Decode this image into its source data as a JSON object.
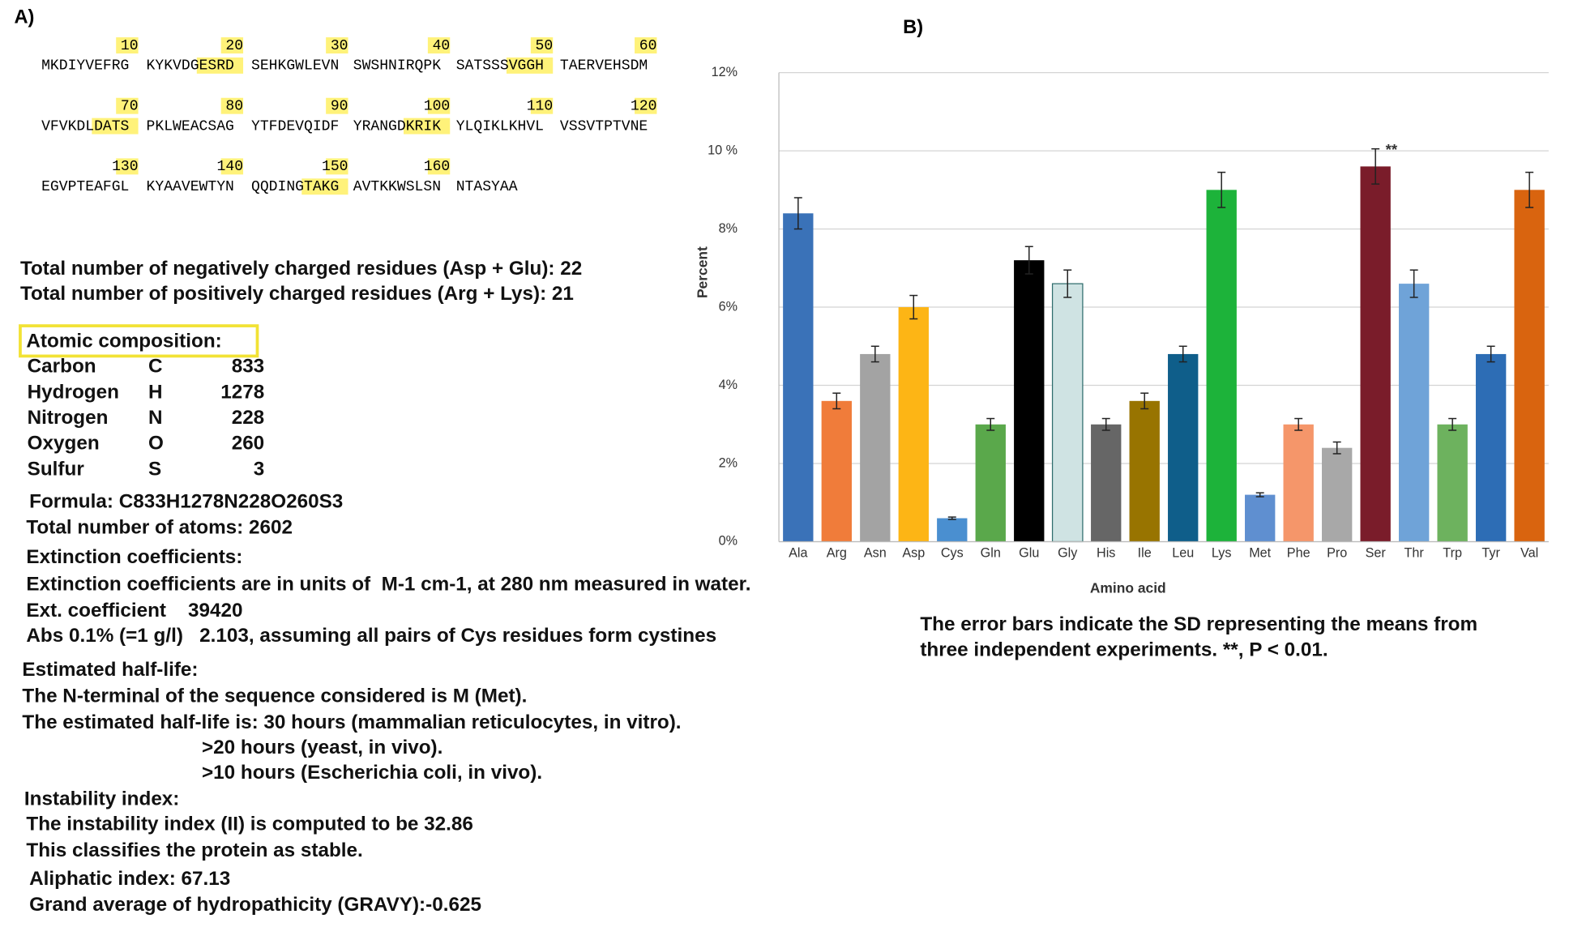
{
  "panel_a": {
    "label": "A)",
    "sequence": [
      {
        "numbers": [
          10,
          20,
          30,
          40,
          50,
          60
        ],
        "groups": [
          "MKDIYVEFRG",
          "KYKVDGESRD",
          "SEHKGWLEVN",
          "SWSHNIRQPK",
          "SATSSSVGGH",
          "TAERVEHSDM"
        ]
      },
      {
        "numbers": [
          70,
          80,
          90,
          100,
          110,
          120
        ],
        "groups": [
          "VFVKDLDATS",
          "PKLWEACSAG",
          "YTFDEVQIDF",
          "YRANGDKRIK",
          "YLQIKLKHVL",
          "VSSVTPTVNE"
        ]
      },
      {
        "numbers": [
          130,
          140,
          150,
          160
        ],
        "groups": [
          "EGVPTEAFGL",
          "KYAAVEWTYN",
          "QQDINGTAKG",
          "AVTKKWSLSN",
          "NTASYAA"
        ]
      }
    ],
    "charges": [
      "Total number of negatively charged residues (Asp + Glu): 22",
      "Total number of positively charged residues (Arg + Lys): 21"
    ],
    "atomic_title": "Atomic composition:",
    "atomic_rows": [
      [
        "Carbon",
        "C",
        833
      ],
      [
        "Hydrogen",
        "H",
        1278
      ],
      [
        "Nitrogen",
        "N",
        228
      ],
      [
        "Oxygen",
        "O",
        260
      ],
      [
        "Sulfur",
        "S",
        3
      ]
    ],
    "properties": [
      "Formula: C833H1278N228O260S3",
      "Total number of atoms: 2602",
      "Extinction coefficients:",
      "Extinction coefficients are in units of  M-1 cm-1, at 280 nm measured in water.",
      "Ext. coefficient    39420",
      "Abs 0.1% (=1 g/l)   2.103, assuming all pairs of Cys residues form cystines",
      "Estimated half-life:",
      "The N-terminal of the sequence considered is M (Met).",
      "The estimated half-life is: 30 hours (mammalian reticulocytes, in vitro).",
      ">20 hours (yeast, in vivo).",
      ">10 hours (Escherichia coli, in vivo).",
      "Instability index:",
      "The instability index (II) is computed to be 32.86",
      "This classifies the protein as stable.",
      "Aliphatic index: 67.13",
      "Grand average of hydropathicity (GRAVY):-0.625"
    ]
  },
  "chart_data": {
    "type": "bar",
    "panel_label": "B)",
    "y_label": "Percent",
    "x_label": "Amino acid",
    "categories": [
      "Ala",
      "Arg",
      "Asn",
      "Asp",
      "Cys",
      "Gln",
      "Glu",
      "Gly",
      "His",
      "Ile",
      "Leu",
      "Lys",
      "Met",
      "Phe",
      "Pro",
      "Ser",
      "Thr",
      "Trp",
      "Tyr",
      "Val"
    ],
    "values": [
      8.4,
      3.6,
      4.8,
      6.0,
      0.6,
      3.0,
      7.2,
      6.6,
      3.0,
      3.6,
      4.8,
      9.0,
      1.2,
      3.0,
      2.4,
      9.6,
      6.6,
      3.0,
      4.8,
      9.0
    ],
    "errors": [
      0.4,
      0.2,
      0.2,
      0.3,
      0.03,
      0.15,
      0.35,
      0.35,
      0.15,
      0.2,
      0.2,
      0.45,
      0.05,
      0.15,
      0.15,
      0.45,
      0.35,
      0.15,
      0.2,
      0.45
    ],
    "colors": [
      "#3a72b8",
      "#f07c3a",
      "#a3a3a3",
      "#fdb515",
      "#4a8fd0",
      "#5aa84b",
      "#000000",
      "#cfe3e3",
      "#666666",
      "#987400",
      "#0f5e8a",
      "#1db33a",
      "#5f8fd0",
      "#f5966a",
      "#a8a8a8",
      "#7a1c2a",
      "#6fa3d8",
      "#6db25e",
      "#2d6db5",
      "#d9640f"
    ],
    "annotation": {
      "category": "Ser",
      "text": "**"
    },
    "ylim": [
      0,
      12
    ],
    "yticks": [
      {
        "value": 0,
        "label": "0%"
      },
      {
        "value": 2,
        "label": "2%"
      },
      {
        "value": 4,
        "label": "4%"
      },
      {
        "value": 6,
        "label": "6%"
      },
      {
        "value": 8,
        "label": "8%"
      },
      {
        "value": 10,
        "label": "10 %"
      },
      {
        "value": 12,
        "label": "12%"
      }
    ],
    "grid": true,
    "caption": [
      "The error bars indicate the SD representing the means from",
      "three independent experiments. **, P < 0.01."
    ]
  }
}
